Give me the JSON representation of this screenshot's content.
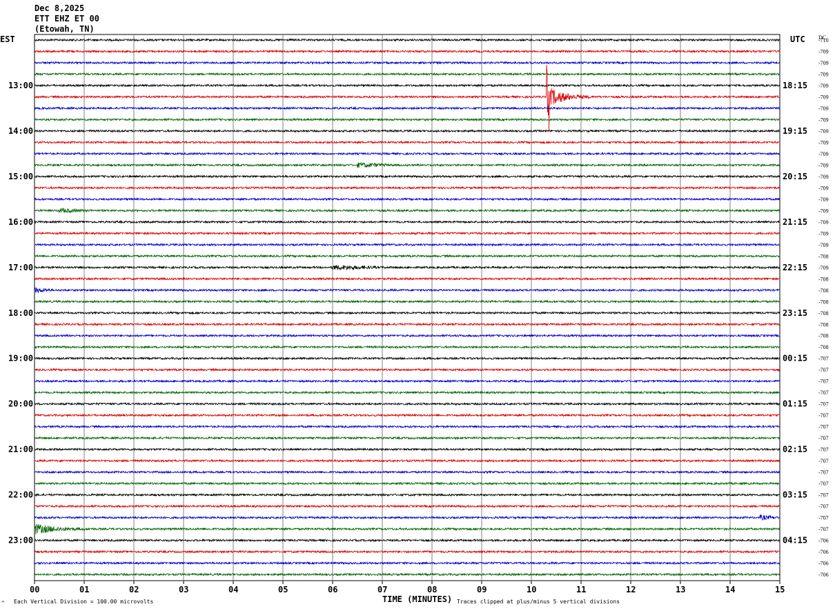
{
  "header": {
    "date": "Dec 8,2025",
    "station": "ETT EHZ ET 00",
    "location": "(Etowah, TN)"
  },
  "left_tz": "EST",
  "right_tz": "UTC",
  "dc_label": "DC",
  "footer": {
    "left_mark": "^",
    "scale": "Each Vertical Division =  100.00 microvolts",
    "xlabel": "TIME (MINUTES)",
    "clip_note": "Traces clipped at plus/minus 5 vertical divisions"
  },
  "colors": {
    "trace_cycle": [
      "#000000",
      "#dd0000",
      "#0000cc",
      "#006400"
    ],
    "grid": "#808080"
  },
  "chart_data": {
    "type": "line",
    "subtype": "helicorder",
    "x_ticks": [
      "00",
      "01",
      "02",
      "03",
      "04",
      "05",
      "06",
      "07",
      "08",
      "09",
      "10",
      "11",
      "12",
      "13",
      "14",
      "15"
    ],
    "xlim": [
      0,
      15
    ],
    "xlabel": "TIME (MINUTES)",
    "trace_minutes": 15,
    "left_hour_labels": [
      "13:00",
      "14:00",
      "15:00",
      "16:00",
      "17:00",
      "18:00",
      "19:00",
      "20:00",
      "21:00",
      "22:00",
      "23:00"
    ],
    "right_hour_labels": [
      "18:15",
      "19:15",
      "20:15",
      "21:15",
      "22:15",
      "23:15",
      "00:15",
      "01:15",
      "02:15",
      "03:15",
      "04:15"
    ],
    "first_labeled_trace": 4,
    "dc_offsets": [
      -710,
      -709,
      -709,
      -709,
      -709,
      -709,
      -709,
      -709,
      -709,
      -709,
      -709,
      -709,
      -709,
      -709,
      -709,
      -709,
      -709,
      -709,
      -709,
      -708,
      -709,
      -708,
      -708,
      -708,
      -708,
      -708,
      -708,
      -708,
      -707,
      -707,
      -707,
      -707,
      -707,
      -707,
      -707,
      -707,
      -707,
      -707,
      -707,
      -707,
      -707,
      -707,
      -707,
      -707,
      -706,
      -706,
      -706,
      -706
    ],
    "events": [
      {
        "trace": 5,
        "minute": 10.3,
        "duration": 0.9,
        "amplitude": 5,
        "type": "quake"
      },
      {
        "trace": 11,
        "minute": 6.5,
        "duration": 0.7,
        "amplitude": 1.2,
        "type": "noise"
      },
      {
        "trace": 20,
        "minute": 6.0,
        "duration": 1.1,
        "amplitude": 1.1,
        "type": "noise"
      },
      {
        "trace": 43,
        "minute": 0.0,
        "duration": 1.2,
        "amplitude": 2.2,
        "type": "quake"
      },
      {
        "trace": 22,
        "minute": 0.0,
        "duration": 0.4,
        "amplitude": 1.1,
        "type": "noise"
      },
      {
        "trace": 15,
        "minute": 0.5,
        "duration": 0.6,
        "amplitude": 1.0,
        "type": "noise"
      },
      {
        "trace": 42,
        "minute": 14.6,
        "duration": 0.4,
        "amplitude": 1.1,
        "type": "noise"
      }
    ]
  }
}
